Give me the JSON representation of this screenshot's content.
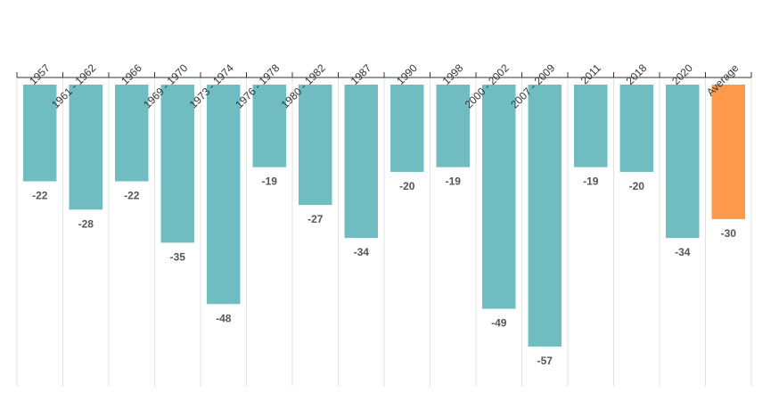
{
  "chart_data": {
    "type": "bar",
    "orientation": "vertical-down",
    "categories": [
      "1957",
      "1961 - 1962",
      "1966",
      "1969 - 1970",
      "1973 - 1974",
      "1976 - 1978",
      "1980 - 1982",
      "1987",
      "1990",
      "1998",
      "2000 - 2002",
      "2007 - 2009",
      "2011",
      "2018",
      "2020",
      "Average"
    ],
    "values": [
      -22,
      -28,
      -22,
      -35,
      -48,
      -19,
      -27,
      -34,
      -20,
      -19,
      -49,
      -57,
      -19,
      -20,
      -34,
      -30
    ],
    "value_labels": [
      "-22",
      "-28",
      "-22",
      "-35",
      "-48",
      "-19",
      "-27",
      "-34",
      "-20",
      "-19",
      "-49",
      "-57",
      "-19",
      "-20",
      "-34",
      "-30"
    ],
    "ylim": [
      -64,
      0
    ],
    "grid": "vertical separators",
    "colors": {
      "bar": "#6fbdc1",
      "highlight": "#ff9a4d",
      "grid": "#e3e3e3",
      "axis": "#333333",
      "value_text": "#555555",
      "label_text": "#333333"
    },
    "highlight_category": "Average"
  }
}
